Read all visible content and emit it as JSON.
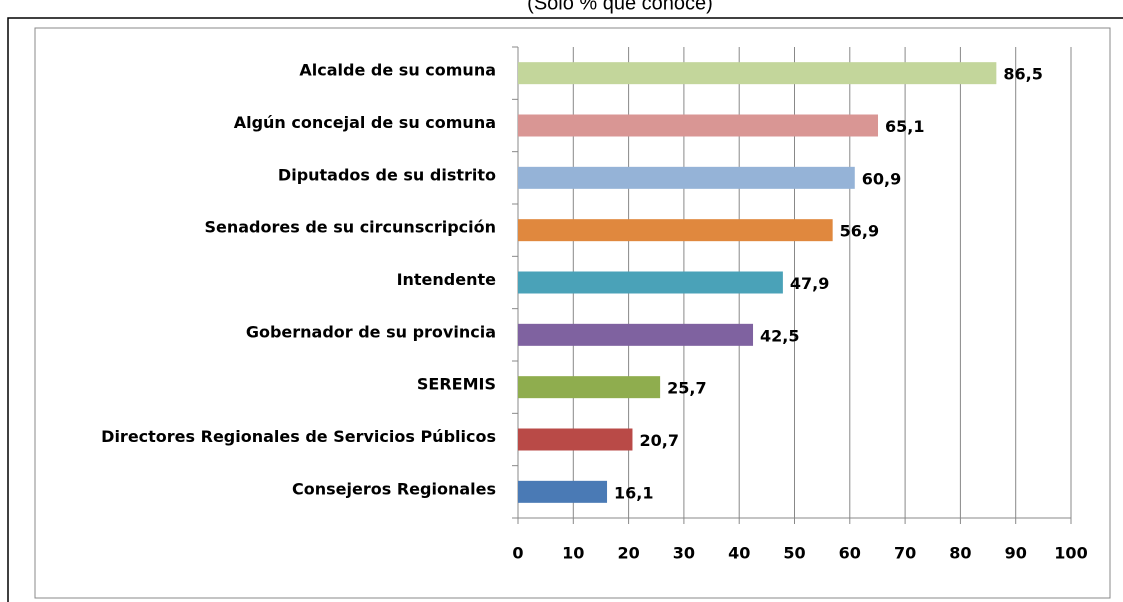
{
  "chart_data": {
    "type": "bar",
    "orientation": "horizontal",
    "subtitle": "(Sólo % que conoce)",
    "categories": [
      "Alcalde de su comuna",
      "Algún concejal de su comuna",
      "Diputados de su distrito",
      "Senadores de su circunscripción",
      "Intendente",
      "Gobernador de su provincia",
      "SEREMIS",
      "Directores Regionales de Servicios Públicos",
      "Consejeros Regionales"
    ],
    "values": [
      86.5,
      65.1,
      60.9,
      56.9,
      47.9,
      42.5,
      25.7,
      20.7,
      16.1
    ],
    "value_labels": [
      "86,5",
      "65,1",
      "60,9",
      "56,9",
      "47,9",
      "42,5",
      "25,7",
      "20,7",
      "16,1"
    ],
    "colors": [
      "#c3d69b",
      "#d99694",
      "#95b3d7",
      "#e0883e",
      "#4aa2b8",
      "#7f62a0",
      "#8fad4e",
      "#b94a47",
      "#4a7ab5"
    ],
    "xlim": [
      0,
      100
    ],
    "xticks": [
      0,
      10,
      20,
      30,
      40,
      50,
      60,
      70,
      80,
      90,
      100
    ],
    "grid": true
  }
}
